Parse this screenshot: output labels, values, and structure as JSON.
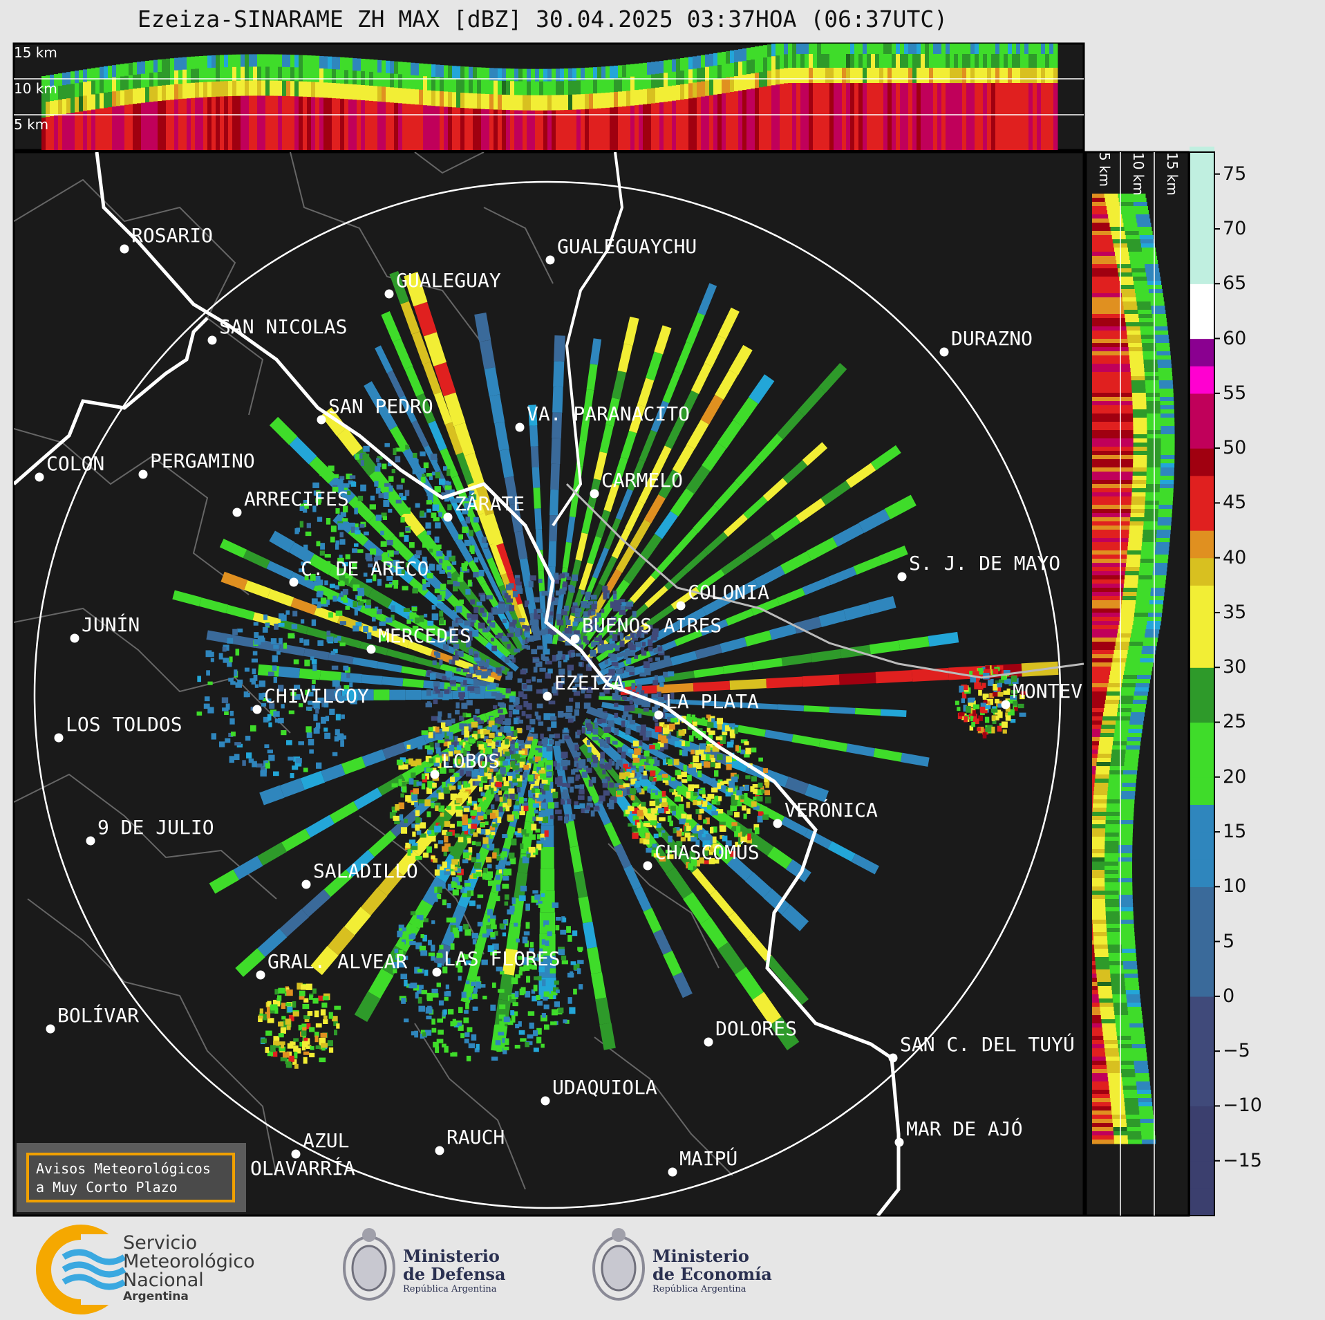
{
  "title": "Ezeiza-SINARAME ZH MAX [dBZ] 30.04.2025 03:37HOA (06:37UTC)",
  "top_panel_labels": [
    "15 km",
    "10 km",
    "5 km"
  ],
  "side_panel_labels": [
    "5 km",
    "10 km",
    "15 km"
  ],
  "colorbar": {
    "unit": "dBZ",
    "ticks": [
      "75",
      "70",
      "65",
      "60",
      "55",
      "50",
      "45",
      "40",
      "35",
      "30",
      "25",
      "20",
      "15",
      "10",
      "5",
      "0",
      "−5",
      "−10",
      "−15"
    ],
    "stops": [
      {
        "v": -20,
        "c": "#3b3f6e"
      },
      {
        "v": -10,
        "c": "#404a7a"
      },
      {
        "v": 0,
        "c": "#3a6a9a"
      },
      {
        "v": 10,
        "c": "#2f86bd"
      },
      {
        "v": 17,
        "c": "#23a6d8"
      },
      {
        "v": 18,
        "c": "#3fdc2a"
      },
      {
        "v": 25,
        "c": "#2e9a2a"
      },
      {
        "v": 30,
        "c": "#1f6a1f"
      },
      {
        "v": 30.1,
        "c": "#f2ee35"
      },
      {
        "v": 37,
        "c": "#d8c020"
      },
      {
        "v": 40,
        "c": "#e09020"
      },
      {
        "v": 42,
        "c": "#e0201f"
      },
      {
        "v": 48,
        "c": "#a00010"
      },
      {
        "v": 50,
        "c": "#c0005a"
      },
      {
        "v": 55,
        "c": "#ff00d0"
      },
      {
        "v": 58,
        "c": "#8a0090"
      },
      {
        "v": 60,
        "c": "#ffffff"
      },
      {
        "v": 65,
        "c": "#c0efe0"
      },
      {
        "v": 77,
        "c": "#7fd8b8"
      }
    ]
  },
  "cities": [
    {
      "name": "ROSARIO"
    },
    {
      "name": "GUALEGUAYCHU"
    },
    {
      "name": "GUALEGUAY"
    },
    {
      "name": "SAN NICOLAS"
    },
    {
      "name": "DURAZNO"
    },
    {
      "name": "SAN PEDRO"
    },
    {
      "name": "VA. PARANACITO"
    },
    {
      "name": "COLON"
    },
    {
      "name": "PERGAMINO"
    },
    {
      "name": "CARMELO"
    },
    {
      "name": "ARRECIFES"
    },
    {
      "name": "ZÁRATE"
    },
    {
      "name": "S. J. DE MAYO"
    },
    {
      "name": "C. DE ARECO"
    },
    {
      "name": "COLONIA"
    },
    {
      "name": "JUNÍN"
    },
    {
      "name": "BUENOS AIRES"
    },
    {
      "name": "MERCEDES"
    },
    {
      "name": "EZEIZA"
    },
    {
      "name": "MONTEVIDEO"
    },
    {
      "name": "CHIVILCOY"
    },
    {
      "name": "LA PLATA"
    },
    {
      "name": "LOS TOLDOS"
    },
    {
      "name": "LOBOS"
    },
    {
      "name": "VERÓNICA"
    },
    {
      "name": "9 DE JULIO"
    },
    {
      "name": "CHASCOMÚS"
    },
    {
      "name": "SALADILLO"
    },
    {
      "name": "GRAL. ALVEAR"
    },
    {
      "name": "LAS FLORES"
    },
    {
      "name": "BOLÍVAR"
    },
    {
      "name": "DOLORES"
    },
    {
      "name": "SAN C. DEL TUYÚ"
    },
    {
      "name": "UDAQUIOLA"
    },
    {
      "name": "MAR DE AJÓ"
    },
    {
      "name": "AZUL"
    },
    {
      "name": "RAUCH"
    },
    {
      "name": "MAIPÚ"
    },
    {
      "name": "OLAVARRÍA"
    }
  ],
  "avisos": [
    "Avisos Meteorológicos",
    "a Muy Corto Plazo"
  ],
  "logos": {
    "smn": [
      "Servicio",
      "Meteorológico",
      "Nacional",
      "Argentina"
    ],
    "defensa": [
      "Ministerio",
      "de Defensa",
      "República Argentina"
    ],
    "economia": [
      "Ministerio",
      "de Economía",
      "República Argentina"
    ]
  }
}
